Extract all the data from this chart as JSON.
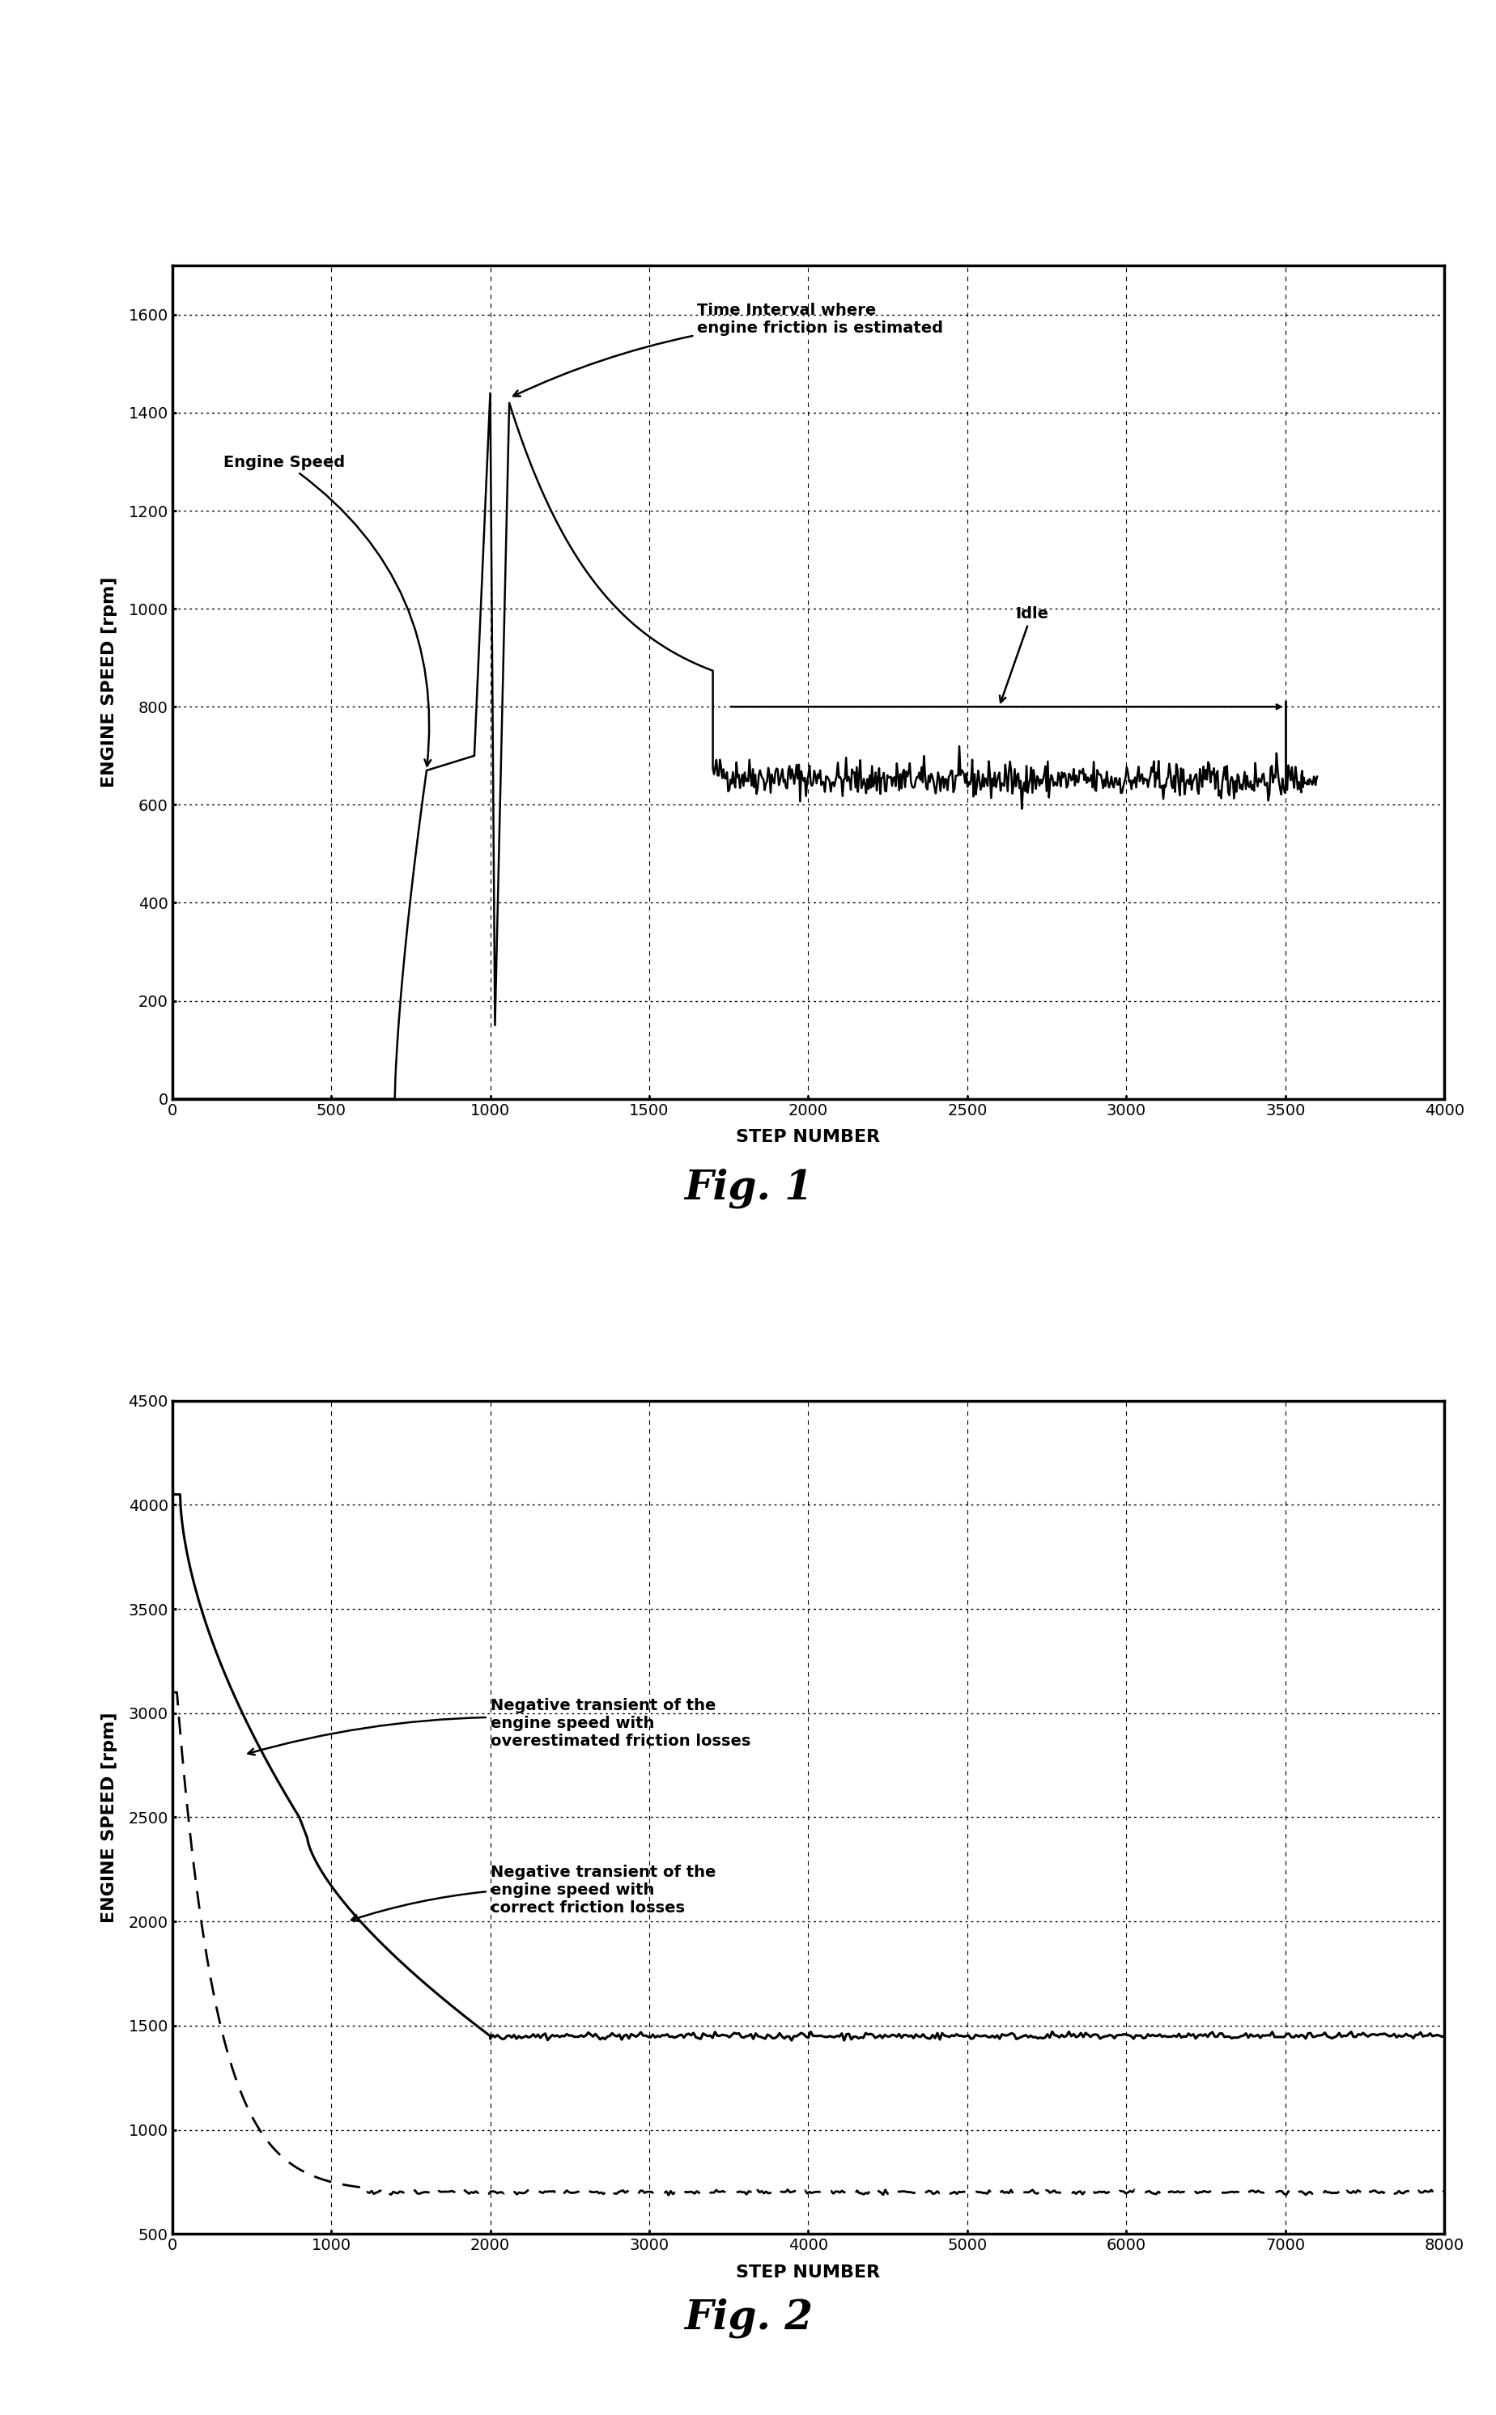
{
  "fig1": {
    "xlim": [
      0,
      4000
    ],
    "ylim": [
      0,
      1700
    ],
    "xticks": [
      0,
      500,
      1000,
      1500,
      2000,
      2500,
      3000,
      3500,
      4000
    ],
    "yticks": [
      0,
      200,
      400,
      600,
      800,
      1000,
      1200,
      1400,
      1600
    ],
    "xlabel": "STEP NUMBER",
    "ylabel": "ENGINE SPEED [rpm]"
  },
  "fig2": {
    "xlim": [
      0,
      8000
    ],
    "ylim": [
      500,
      4500
    ],
    "xticks": [
      0,
      1000,
      2000,
      3000,
      4000,
      5000,
      6000,
      7000,
      8000
    ],
    "yticks": [
      500,
      1000,
      1500,
      2000,
      2500,
      3000,
      3500,
      4000,
      4500
    ],
    "xlabel": "STEP NUMBER",
    "ylabel": "ENGINE SPEED [rpm]"
  },
  "background_color": "#ffffff"
}
